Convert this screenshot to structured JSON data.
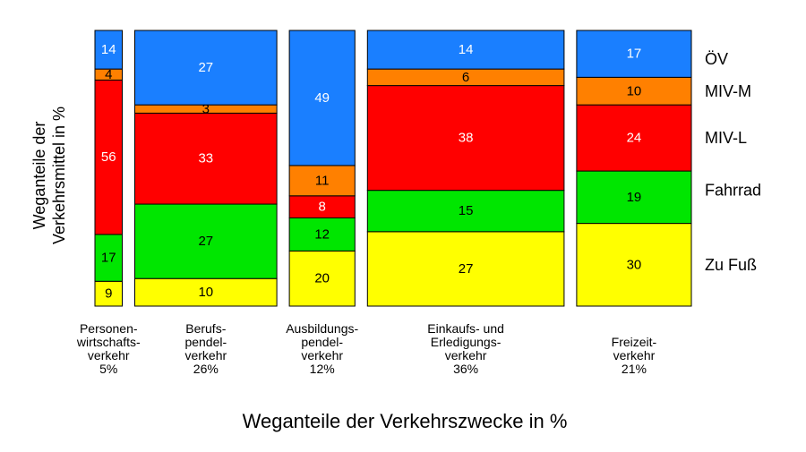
{
  "chart_data": {
    "type": "bar",
    "subtype": "marimekko-stacked-100",
    "xlabel": "Weganteile der Verkehrszwecke in %",
    "ylabel_lines": [
      "Weganteile der",
      "Verkehrsmittel in %"
    ],
    "ylim": [
      0,
      100
    ],
    "grid": false,
    "legend_position": "right",
    "series": [
      {
        "name": "Zu Fuß",
        "color": "#ffff00",
        "label_color": "#000000"
      },
      {
        "name": "Fahrrad",
        "color": "#00e600",
        "label_color": "#000000"
      },
      {
        "name": "MIV-L",
        "color": "#ff0000",
        "label_color": "#ffffff"
      },
      {
        "name": "MIV-M",
        "color": "#ff8000",
        "label_color": "#000000"
      },
      {
        "name": "ÖV",
        "color": "#1a7fff",
        "label_color": "#ffffff"
      }
    ],
    "categories": [
      {
        "label_lines": [
          "Personen-",
          "wirtschafts-",
          "verkehr",
          "5%"
        ],
        "width_share": 5,
        "values": [
          9,
          17,
          56,
          4,
          14
        ]
      },
      {
        "label_lines": [
          "Berufs-",
          "pendel-",
          "verkehr",
          "26%"
        ],
        "width_share": 26,
        "values": [
          10,
          27,
          33,
          3,
          27
        ]
      },
      {
        "label_lines": [
          "Ausbildungs-",
          "pendel-",
          "verkehr",
          "12%"
        ],
        "width_share": 12,
        "values": [
          20,
          12,
          8,
          11,
          49
        ]
      },
      {
        "label_lines": [
          "Einkaufs- und",
          "Erledigungs-",
          "verkehr",
          "36%"
        ],
        "width_share": 36,
        "values": [
          27,
          15,
          38,
          6,
          14
        ]
      },
      {
        "label_lines": [
          "Freizeit-",
          "verkehr",
          "21%"
        ],
        "width_share": 21,
        "values": [
          30,
          19,
          24,
          10,
          17
        ]
      }
    ]
  }
}
